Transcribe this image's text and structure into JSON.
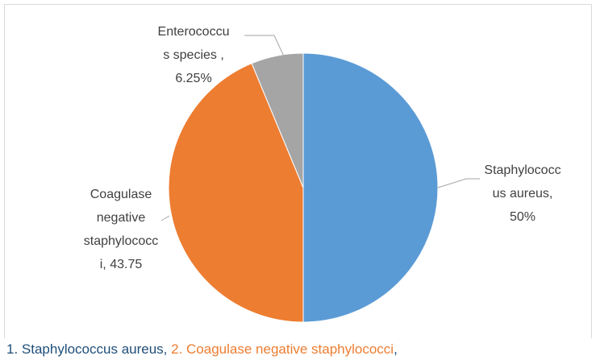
{
  "chart_data": {
    "type": "pie",
    "categories": [
      "Staphylococcus aureus",
      "Coagulase negative staphylococci",
      "Enterococcus species"
    ],
    "values": [
      50,
      43.75,
      6.25
    ],
    "value_labels": [
      [
        "Staphylococc",
        "us aureus,",
        "50%"
      ],
      [
        "Coagulase",
        "negative",
        "staphylococc",
        "i, 43.75"
      ],
      [
        "Enterococcu",
        "s species ,",
        "6.25%"
      ]
    ],
    "colors": [
      "#5b9bd5",
      "#ed7d31",
      "#a5a5a5"
    ],
    "caption": [
      "1. Staphylococcus aureus, ",
      "2. Coagulase negative staphylococci",
      ","
    ]
  }
}
